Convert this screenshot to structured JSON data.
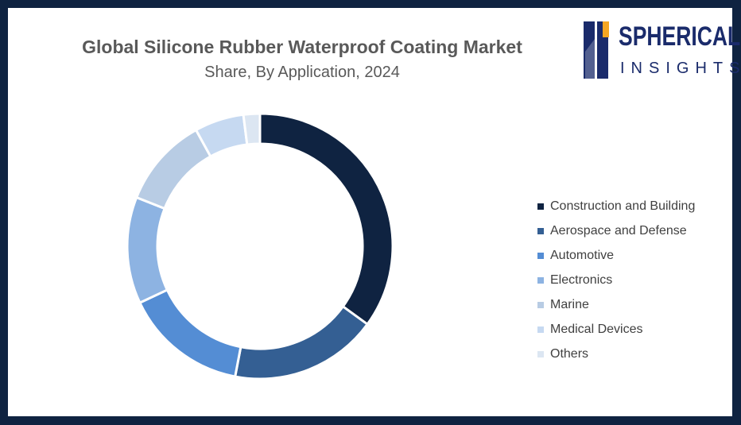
{
  "brand": {
    "line1": "SPHERICAL",
    "line2": "INSIGHTS",
    "color": "#1a2b6b",
    "accent": "#f5a623"
  },
  "chart_data": {
    "type": "pie",
    "style": "donut",
    "title": "Global Silicone Rubber Waterproof Coating Market",
    "subtitle": "Share, By Application, 2024",
    "legend_position": "right",
    "categories": [
      "Construction and Building",
      "Aerospace and Defense",
      "Automotive",
      "Electronics",
      "Marine",
      "Medical Devices",
      "Others"
    ],
    "values": [
      35,
      18,
      15,
      13,
      11,
      6,
      2
    ],
    "colors": [
      "#0f2341",
      "#345f93",
      "#548dd4",
      "#8db3e2",
      "#b8cce4",
      "#c6d9f1",
      "#dce6f2"
    ]
  }
}
